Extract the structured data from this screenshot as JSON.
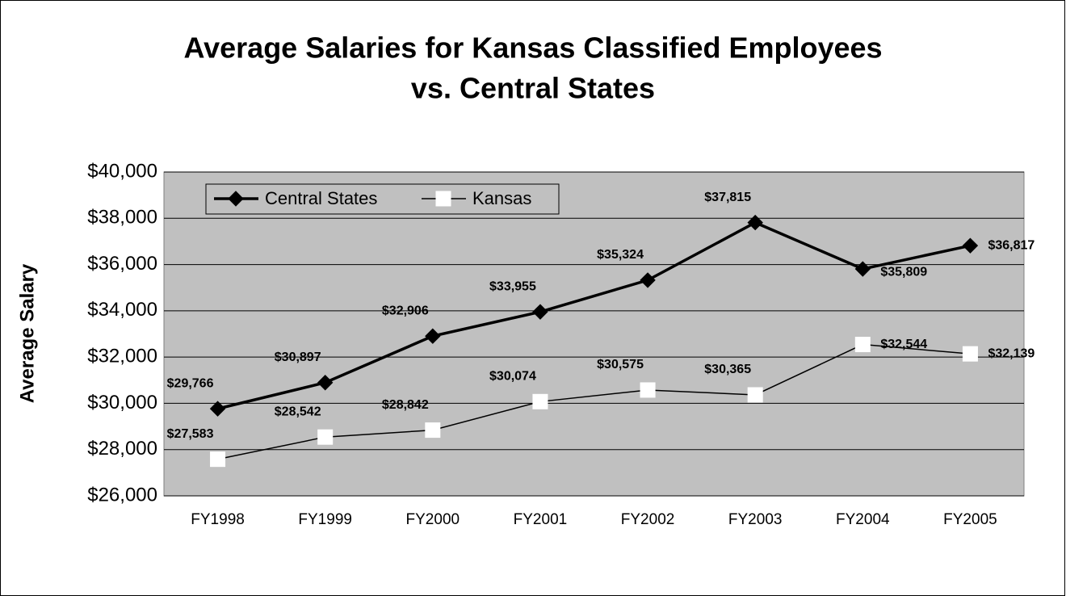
{
  "chart_data": {
    "type": "line",
    "title": [
      "Average Salaries for Kansas Classified Employees",
      "vs. Central States"
    ],
    "y_label": "Average Salary",
    "categories": [
      "FY1998",
      "FY1999",
      "FY2000",
      "FY2001",
      "FY2002",
      "FY2003",
      "FY2004",
      "FY2005"
    ],
    "series": [
      {
        "name": "Central States",
        "color": "#000000",
        "marker": "diamond",
        "values": [
          29766,
          30897,
          32906,
          33955,
          35324,
          37815,
          35809,
          36817
        ],
        "value_labels": [
          "$29,766",
          "$30,897",
          "$32,906",
          "$33,955",
          "$35,324",
          "$37,815",
          "$35,809",
          "$36,817"
        ]
      },
      {
        "name": "Kansas",
        "color": "#ffffff",
        "marker": "square",
        "values": [
          27583,
          28542,
          28842,
          30074,
          30575,
          30365,
          32544,
          32139
        ],
        "value_labels": [
          "$27,583",
          "$28,542",
          "$28,842",
          "$30,074",
          "$30,575",
          "$30,365",
          "$32,544",
          "$32,139"
        ]
      }
    ],
    "ylim": [
      26000,
      40000
    ],
    "yticks": [
      {
        "value": 26000,
        "label": "$26,000"
      },
      {
        "value": 28000,
        "label": "$28,000"
      },
      {
        "value": 30000,
        "label": "$30,000"
      },
      {
        "value": 32000,
        "label": "$32,000"
      },
      {
        "value": 34000,
        "label": "$34,000"
      },
      {
        "value": 36000,
        "label": "$36,000"
      },
      {
        "value": 38000,
        "label": "$38,000"
      },
      {
        "value": 40000,
        "label": "$40,000"
      }
    ],
    "grid": true,
    "legend": "top-left"
  }
}
